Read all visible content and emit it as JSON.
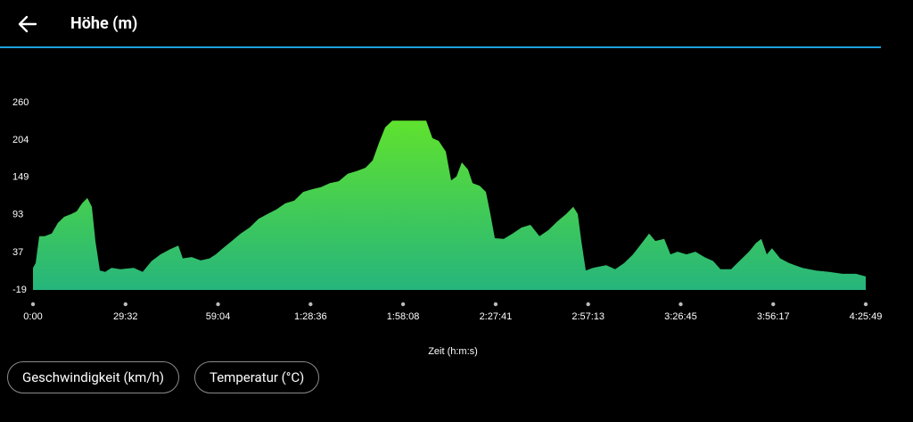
{
  "header": {
    "title": "Höhe (m)"
  },
  "chart_data": {
    "type": "area",
    "x_label": "Zeit (h:m:s)",
    "x": [
      0,
      51,
      120,
      222,
      359,
      478,
      598,
      734,
      837,
      939,
      1042,
      1127,
      1195,
      1281,
      1383,
      1503,
      1674,
      1930,
      2100,
      2271,
      2442,
      2613,
      2783,
      2869,
      3039,
      3210,
      3381,
      3501,
      3637,
      3808,
      3979,
      4149,
      4320,
      4491,
      4662,
      4832,
      5003,
      5174,
      5345,
      5516,
      5686,
      5857,
      6028,
      6199,
      6369,
      6506,
      6625,
      6745,
      6882,
      7052,
      7223,
      7394,
      7530,
      7650,
      7770,
      7906,
      8009,
      8111,
      8214,
      8333,
      8418,
      8555,
      8675,
      8760,
      8845,
      9016,
      9187,
      9358,
      9528,
      9699,
      9870,
      10041,
      10211,
      10348,
      10433,
      10501,
      10587,
      10723,
      10979,
      11150,
      11321,
      11492,
      11663,
      11799,
      11919,
      12089,
      12209,
      12345,
      12516,
      12687,
      12858,
      13028,
      13165,
      13370,
      13541,
      13712,
      13848,
      13950,
      14053,
      14155,
      14309,
      14480,
      14736,
      14992,
      15249,
      15505,
      15761,
      15949
    ],
    "values": [
      14,
      21,
      61,
      61,
      65,
      81,
      90,
      94,
      98,
      110,
      118,
      105,
      54,
      10,
      8,
      14,
      12,
      14,
      8,
      24,
      34,
      41,
      47,
      28,
      30,
      25,
      28,
      34,
      43,
      54,
      65,
      74,
      87,
      94,
      101,
      110,
      114,
      127,
      131,
      134,
      140,
      143,
      154,
      158,
      163,
      174,
      200,
      223,
      233,
      233,
      233,
      233,
      233,
      207,
      203,
      187,
      144,
      150,
      171,
      160,
      140,
      136,
      127,
      94,
      58,
      57,
      65,
      74,
      78,
      61,
      70,
      83,
      94,
      105,
      94,
      54,
      10,
      14,
      18,
      12,
      21,
      34,
      51,
      65,
      54,
      57,
      34,
      38,
      34,
      38,
      30,
      24,
      12,
      12,
      25,
      38,
      51,
      57,
      34,
      43,
      28,
      21,
      14,
      10,
      8,
      5,
      5,
      1
    ],
    "color_top": "#5fe22e",
    "color_bottom": "#26b57c",
    "xlim": [
      0,
      15949
    ],
    "xticks": [
      {
        "value": 0,
        "label": "0:00"
      },
      {
        "value": 1772,
        "label": "29:32"
      },
      {
        "value": 3544,
        "label": "59:04"
      },
      {
        "value": 5316,
        "label": "1:28:36"
      },
      {
        "value": 7088,
        "label": "1:58:08"
      },
      {
        "value": 8861,
        "label": "2:27:41"
      },
      {
        "value": 10633,
        "label": "2:57:13"
      },
      {
        "value": 12405,
        "label": "3:26:45"
      },
      {
        "value": 14177,
        "label": "3:56:17"
      },
      {
        "value": 15949,
        "label": "4:25:49"
      }
    ],
    "ylim": [
      -19,
      260
    ],
    "yticks": [
      -19,
      37,
      93,
      149,
      204,
      260
    ]
  },
  "buttons": [
    "Geschwindigkeit (km/h)",
    "Temperatur (°C)"
  ]
}
